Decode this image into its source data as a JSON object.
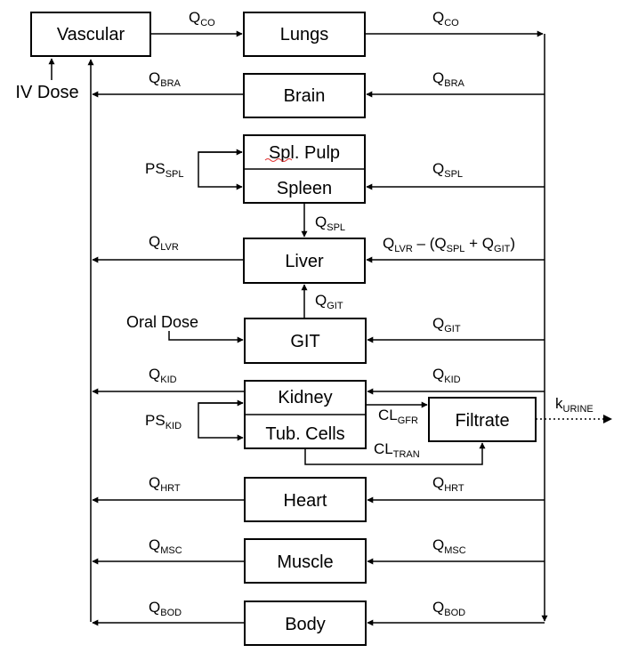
{
  "compartments": {
    "vascular": "Vascular",
    "lungs": "Lungs",
    "brain": "Brain",
    "spl_pulp": "Spl. Pulp",
    "spleen": "Spleen",
    "liver": "Liver",
    "git": "GIT",
    "kidney": "Kidney",
    "tub_cells": "Tub. Cells",
    "filtrate": "Filtrate",
    "heart": "Heart",
    "muscle": "Muscle",
    "body": "Body"
  },
  "doses": {
    "iv": "IV Dose",
    "oral": "Oral Dose"
  },
  "flows": {
    "q_co": {
      "main": "Q",
      "sub": "CO"
    },
    "q_bra": {
      "main": "Q",
      "sub": "BRA"
    },
    "q_spl": {
      "main": "Q",
      "sub": "SPL"
    },
    "ps_spl": {
      "main": "PS",
      "sub": "SPL"
    },
    "q_lvr": {
      "main": "Q",
      "sub": "LVR"
    },
    "q_git": {
      "main": "Q",
      "sub": "GIT"
    },
    "q_kid": {
      "main": "Q",
      "sub": "KID"
    },
    "ps_kid": {
      "main": "PS",
      "sub": "KID"
    },
    "cl_gfr": {
      "main": "CL",
      "sub": "GFR"
    },
    "cl_tran": {
      "main": "CL",
      "sub": "TRAN"
    },
    "k_urine": {
      "main": "k",
      "sub": "URINE"
    },
    "q_hrt": {
      "main": "Q",
      "sub": "HRT"
    },
    "q_msc": {
      "main": "Q",
      "sub": "MSC"
    },
    "q_bod": {
      "main": "Q",
      "sub": "BOD"
    },
    "liver_in": {
      "t1": "Q",
      "s1": "LVR",
      "t2": " – (Q",
      "s2": "SPL",
      "t3": " + Q",
      "s3": "GIT",
      "t4": ")"
    }
  }
}
